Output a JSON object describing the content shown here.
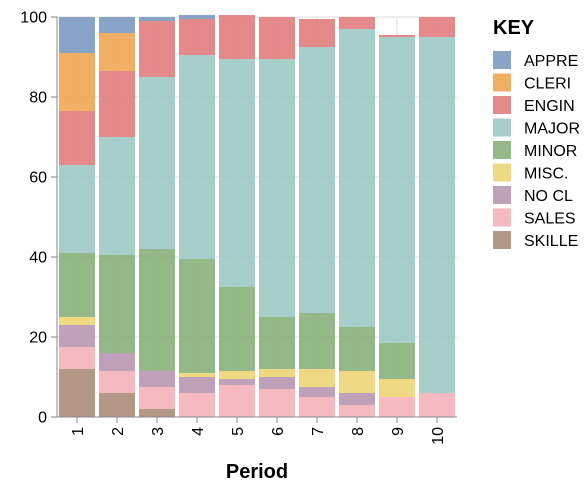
{
  "chart_data": {
    "type": "bar",
    "stacked": true,
    "xlabel": "Period",
    "ylabel": "",
    "ylim": [
      0,
      100
    ],
    "y_ticks": [
      0,
      20,
      40,
      60,
      80,
      100
    ],
    "grid": true,
    "legend_position": "right",
    "legend_title": "KEY",
    "categories": [
      "1",
      "2",
      "3",
      "4",
      "5",
      "6",
      "7",
      "8",
      "9",
      "10"
    ],
    "series": [
      {
        "name": "SKILLE",
        "color": "#ab8d7a",
        "values": [
          12,
          6,
          2,
          0,
          0,
          0,
          0,
          0,
          0,
          0
        ]
      },
      {
        "name": "SALES",
        "color": "#f5b3ba",
        "values": [
          5.5,
          5.5,
          5.5,
          6,
          8,
          7,
          5,
          3,
          5,
          6
        ]
      },
      {
        "name": "NO CL",
        "color": "#b997b3",
        "values": [
          5.5,
          4.5,
          4,
          4,
          1.5,
          3,
          2.5,
          3,
          0,
          0
        ]
      },
      {
        "name": "MISC.",
        "color": "#edd577",
        "values": [
          2,
          0,
          0,
          1,
          2,
          2,
          4.5,
          5.5,
          4.5,
          0
        ]
      },
      {
        "name": "MINOR",
        "color": "#88b07a",
        "values": [
          16,
          24.5,
          30.5,
          28.5,
          21,
          13,
          14,
          11,
          9,
          0
        ]
      },
      {
        "name": "MAJOR",
        "color": "#9cc9c4",
        "values": [
          22,
          29.5,
          43,
          51,
          57,
          64.5,
          66.5,
          74.5,
          76.5,
          89
        ]
      },
      {
        "name": "ENGIN",
        "color": "#e27d7e",
        "values": [
          13.5,
          16.5,
          14,
          9,
          11,
          10.5,
          7,
          3,
          0.5,
          5
        ]
      },
      {
        "name": "CLERI",
        "color": "#eea653",
        "values": [
          14.5,
          9.5,
          0,
          0,
          0,
          0,
          0,
          0,
          0,
          0
        ]
      },
      {
        "name": "APPRE",
        "color": "#7b9ac0",
        "values": [
          9,
          4,
          1,
          1,
          0,
          0,
          0,
          0,
          0,
          0
        ]
      }
    ],
    "legend_order": [
      "APPRE",
      "CLERI",
      "ENGIN",
      "MAJOR",
      "MINOR",
      "MISC.",
      "NO CL",
      "SALES",
      "SKILLE"
    ]
  }
}
